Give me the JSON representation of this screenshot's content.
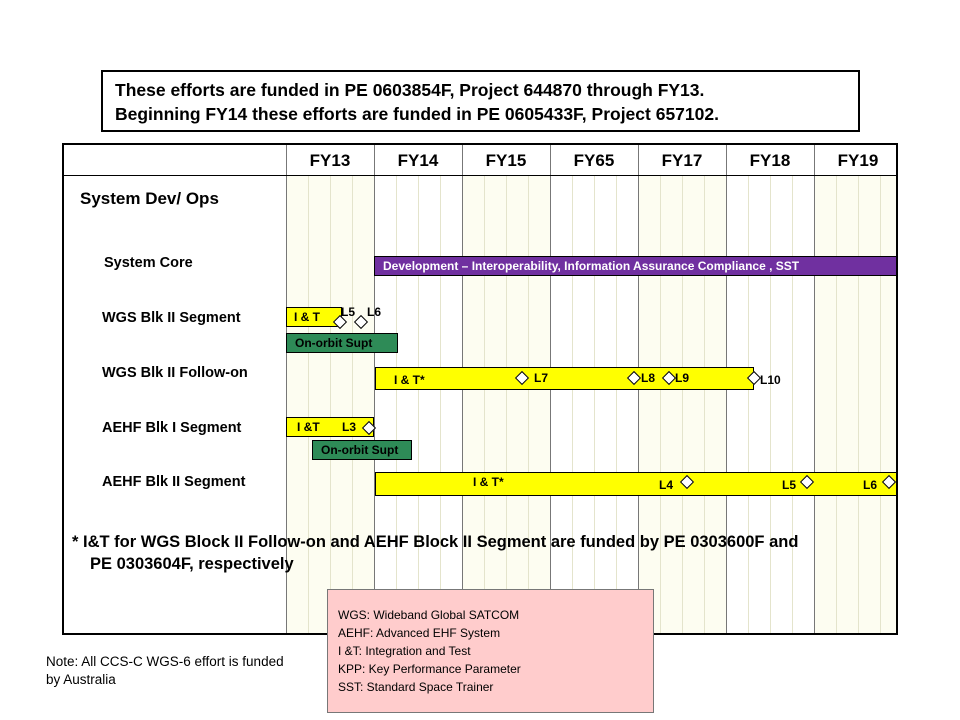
{
  "funding": {
    "line1": "These efforts are funded in PE 0603854F, Project 644870 through FY13.",
    "line2": "Beginning FY14 these efforts are funded in PE 0605433F, Project 657102."
  },
  "years": [
    "FY13",
    "FY14",
    "FY15",
    "FY65",
    "FY17",
    "FY18",
    "FY19"
  ],
  "section_title": "System Dev/ Ops",
  "rows": {
    "system_core": "System Core",
    "wgs_blk2": "WGS Blk II Segment",
    "wgs_followon": "WGS Blk II Follow-on",
    "aehf_blk1": "AEHF Blk I Segment",
    "aehf_blk2": "AEHF Blk II Segment"
  },
  "bars": {
    "system_core_dev": "Development – Interoperability, Information Assurance  Compliance , SST",
    "wgs_blk2_it": "I & T",
    "wgs_blk2_orbit": "On-orbit  Supt",
    "wgs_followon_it": "I & T*",
    "aehf_blk1_it": "I &T",
    "aehf_blk1_orbit": "On-orbit  Supt",
    "aehf_blk2_it": "I & T*"
  },
  "milestones": {
    "wgs_blk2": [
      "L5",
      "L6"
    ],
    "wgs_followon": [
      "L7",
      "L8",
      "L9",
      "L10"
    ],
    "aehf_blk1": [
      "L3"
    ],
    "aehf_blk2": [
      "L4",
      "L5",
      "L6"
    ]
  },
  "footnote": {
    "line1": "* I&T for WGS Block II Follow-on and AEHF Block II Segment are funded by PE 0303600F and",
    "line2": "PE 0303604F, respectively"
  },
  "glossary": [
    "WGS: Wideband Global SATCOM",
    "AEHF: Advanced EHF System",
    "I &T: Integration  and Test",
    "KPP: Key Performance  Parameter",
    "SST: Standard Space Trainer"
  ],
  "note": "Note:  All CCS-C WGS-6 effort is funded by Australia",
  "colors": {
    "yellow_bar": "#ffff00",
    "green_bar": "#2e8b57",
    "purple_bar": "#7030a0",
    "glossary_bg": "#ffcccc"
  }
}
